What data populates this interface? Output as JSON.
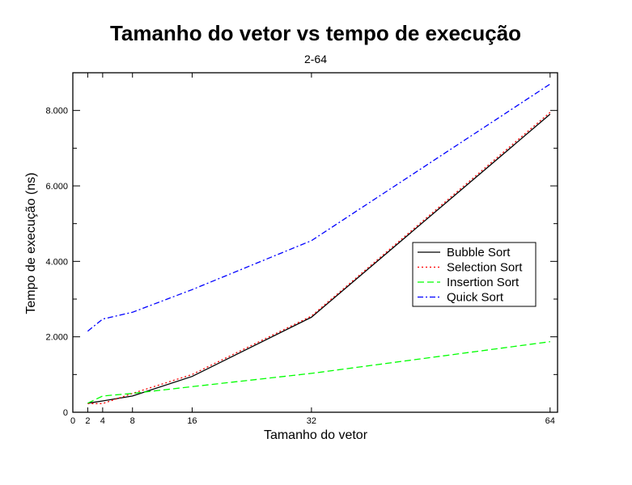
{
  "chart_data": {
    "type": "line",
    "title": "Tamanho do vetor vs tempo de execução",
    "subtitle": "2-64",
    "xlabel": "Tamanho do vetor",
    "ylabel": "Tempo de execução (ns)",
    "xlim": [
      0,
      65
    ],
    "ylim": [
      0,
      9000
    ],
    "x_ticks": [
      0,
      2,
      4,
      8,
      16,
      32,
      64
    ],
    "x_tick_labels": [
      "0",
      "2",
      "4",
      "8",
      "16",
      "32",
      "64"
    ],
    "y_ticks": [
      0,
      2000,
      4000,
      6000,
      8000
    ],
    "y_tick_labels": [
      "0",
      "2.000",
      "4.000",
      "6.000",
      "8.000"
    ],
    "grid": false,
    "legend_position": "right",
    "x": [
      2,
      4,
      8,
      16,
      32,
      64
    ],
    "series": [
      {
        "name": "Bubble Sort",
        "values": [
          240,
          300,
          430,
          950,
          2520,
          7900
        ],
        "color": "#000000",
        "dash": "solid"
      },
      {
        "name": "Selection Sort",
        "values": [
          230,
          230,
          500,
          1000,
          2550,
          7950
        ],
        "color": "#ff0000",
        "dash": "dotted"
      },
      {
        "name": "Insertion Sort",
        "values": [
          240,
          430,
          500,
          680,
          1030,
          1870
        ],
        "color": "#00ff00",
        "dash": "dashed"
      },
      {
        "name": "Quick Sort",
        "values": [
          2150,
          2470,
          2650,
          3250,
          4550,
          8700
        ],
        "color": "#0000ff",
        "dash": "dashdot"
      }
    ]
  }
}
